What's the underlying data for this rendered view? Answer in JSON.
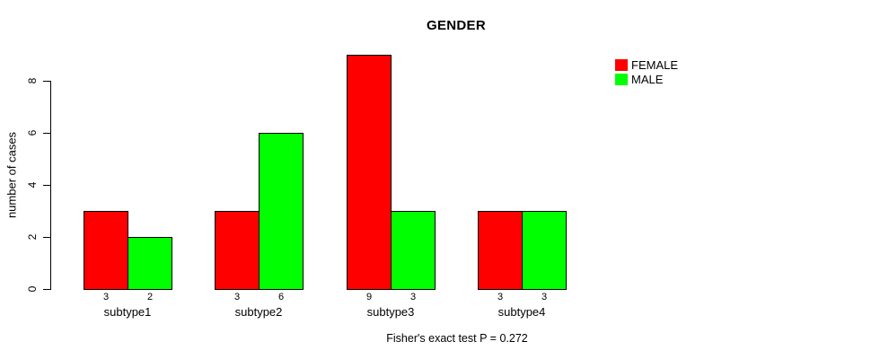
{
  "chart_data": {
    "type": "bar",
    "title": "GENDER",
    "categories": [
      "subtype1",
      "subtype2",
      "subtype3",
      "subtype4"
    ],
    "series": [
      {
        "name": "FEMALE",
        "color": "#ff0000",
        "values": [
          3,
          3,
          9,
          3
        ]
      },
      {
        "name": "MALE",
        "color": "#00ff00",
        "values": [
          2,
          6,
          3,
          3
        ]
      }
    ],
    "xlabel": "",
    "ylabel": "number of cases",
    "ylim": [
      0,
      8
    ],
    "yticks": [
      "0",
      "2",
      "4",
      "6",
      "8"
    ],
    "ytick_values": [
      0,
      2,
      4,
      6,
      8
    ],
    "bar_value_labels_shown": true,
    "grid": false,
    "legend_position": "top-right",
    "legend_entries": [
      "FEMALE",
      "MALE"
    ],
    "axis_color": "#000000",
    "background_color": "#ffffff",
    "caption": "Fisher's exact test P = 0.272"
  }
}
